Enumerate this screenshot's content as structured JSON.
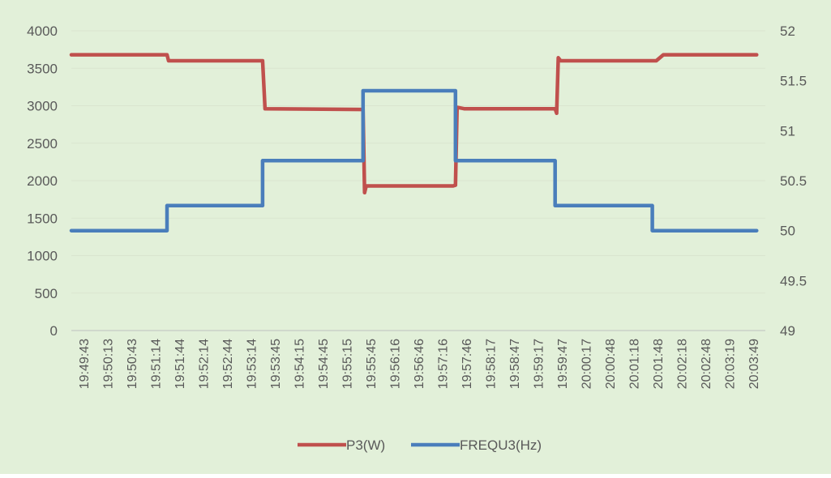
{
  "chart_data": {
    "type": "line",
    "background_color": "#e2f0d9",
    "grid": true,
    "legend_position": "bottom",
    "x_tick_labels": [
      "19:49:43",
      "19:50:13",
      "19:50:43",
      "19:51:14",
      "19:51:44",
      "19:52:14",
      "19:52:44",
      "19:53:14",
      "19:53:45",
      "19:54:15",
      "19:54:45",
      "19:55:15",
      "19:55:45",
      "19:56:16",
      "19:56:46",
      "19:57:16",
      "19:57:46",
      "19:58:17",
      "19:58:47",
      "19:59:17",
      "19:59:47",
      "20:00:17",
      "20:00:48",
      "20:01:18",
      "20:01:48",
      "20:02:18",
      "20:02:48",
      "20:03:19",
      "20:03:49"
    ],
    "y_left": {
      "ylim": [
        0,
        4000
      ],
      "ticks": [
        "0",
        "500",
        "1000",
        "1500",
        "2000",
        "2500",
        "3000",
        "3500",
        "4000"
      ]
    },
    "y_right": {
      "ylim": [
        49,
        52
      ],
      "ticks": [
        "49",
        "49.5",
        "50",
        "50.5",
        "51",
        "51.5",
        "52"
      ]
    },
    "series": [
      {
        "name": "P3(W)",
        "axis": "left",
        "color": "#c0504d",
        "points": [
          [
            "19:49:43",
            3680
          ],
          [
            "19:51:44",
            3680
          ],
          [
            "19:51:46",
            3600
          ],
          [
            "19:53:45",
            3600
          ],
          [
            "19:53:48",
            2960
          ],
          [
            "19:55:52",
            2950
          ],
          [
            "19:55:54",
            1840
          ],
          [
            "19:55:56",
            1930
          ],
          [
            "19:57:46",
            1930
          ],
          [
            "19:57:49",
            1940
          ],
          [
            "19:57:51",
            2980
          ],
          [
            "19:58:00",
            2960
          ],
          [
            "19:59:55",
            2960
          ],
          [
            "19:59:57",
            2900
          ],
          [
            "19:59:59",
            3640
          ],
          [
            "20:00:02",
            3600
          ],
          [
            "20:01:48",
            3600
          ],
          [
            "20:02:03",
            3600
          ],
          [
            "20:02:12",
            3680
          ],
          [
            "20:04:10",
            3680
          ]
        ]
      },
      {
        "name": "FREQU3(Hz)",
        "axis": "right",
        "color": "#4a7ebb",
        "points": [
          [
            "19:49:43",
            50.0
          ],
          [
            "19:51:44",
            50.0
          ],
          [
            "19:51:44",
            50.25
          ],
          [
            "19:53:45",
            50.25
          ],
          [
            "19:53:45",
            50.7
          ],
          [
            "19:55:52",
            50.7
          ],
          [
            "19:55:52",
            51.4
          ],
          [
            "19:57:49",
            51.4
          ],
          [
            "19:57:49",
            50.7
          ],
          [
            "19:59:55",
            50.7
          ],
          [
            "19:59:55",
            50.25
          ],
          [
            "20:01:58",
            50.25
          ],
          [
            "20:01:58",
            50.0
          ],
          [
            "20:04:10",
            50.0
          ]
        ]
      }
    ]
  }
}
